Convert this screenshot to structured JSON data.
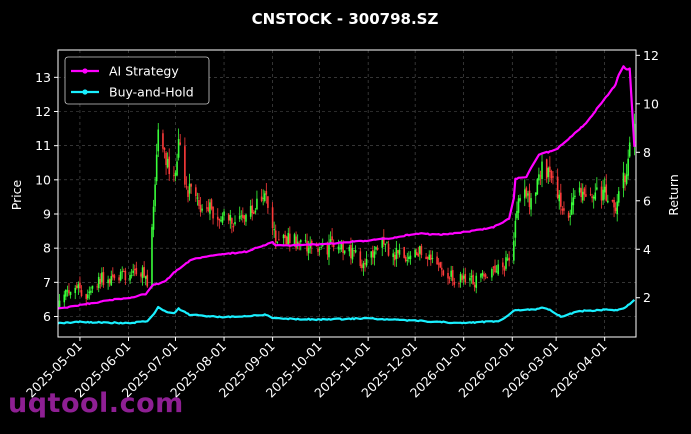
{
  "watermark": "uqtool.com",
  "chart_data": {
    "type": "candlestick+line",
    "title": "CNSTOCK - 300798.SZ",
    "ylabel_left": "Price",
    "ylabel_right": "Return",
    "ylim_left": [
      5.4,
      13.8
    ],
    "ylim_right": [
      0.38,
      12.22
    ],
    "x_range": [
      "2025-04-17",
      "2026-04-21"
    ],
    "x_ticks": [
      "2025-05-01",
      "2025-06-01",
      "2025-07-01",
      "2025-08-01",
      "2025-09-01",
      "2025-10-01",
      "2025-11-01",
      "2025-12-01",
      "2026-01-01",
      "2026-02-01",
      "2026-03-01",
      "2026-04-01"
    ],
    "y_ticks_left": [
      6,
      7,
      8,
      9,
      10,
      11,
      12,
      13
    ],
    "y_ticks_right": [
      2,
      4,
      6,
      8,
      10,
      12
    ],
    "grid": true,
    "legend_position": "top-left",
    "colors": {
      "up": "#39ff3a",
      "down": "#ff3b3b",
      "ai": "#ff00ff",
      "bh": "#19f0ff",
      "background": "#000000"
    },
    "price_keypoints": [
      [
        "2025-04-18",
        6.3
      ],
      [
        "2025-04-25",
        6.9
      ],
      [
        "2025-05-05",
        6.7
      ],
      [
        "2025-05-15",
        7.1
      ],
      [
        "2025-05-28",
        7.2
      ],
      [
        "2025-06-10",
        7.3
      ],
      [
        "2025-06-13",
        7.0
      ],
      [
        "2025-06-16",
        8.6
      ],
      [
        "2025-06-20",
        11.2
      ],
      [
        "2025-06-24",
        10.6
      ],
      [
        "2025-06-30",
        9.9
      ],
      [
        "2025-07-03",
        11.0
      ],
      [
        "2025-07-08",
        9.8
      ],
      [
        "2025-07-15",
        9.3
      ],
      [
        "2025-07-22",
        9.2
      ],
      [
        "2025-08-01",
        8.9
      ],
      [
        "2025-08-12",
        8.8
      ],
      [
        "2025-08-20",
        9.1
      ],
      [
        "2025-08-28",
        9.6
      ],
      [
        "2025-09-02",
        8.4
      ],
      [
        "2025-09-15",
        8.2
      ],
      [
        "2025-10-01",
        8.0
      ],
      [
        "2025-10-15",
        8.1
      ],
      [
        "2025-10-28",
        7.6
      ],
      [
        "2025-11-10",
        8.1
      ],
      [
        "2025-11-20",
        7.8
      ],
      [
        "2025-12-05",
        7.9
      ],
      [
        "2025-12-15",
        7.6
      ],
      [
        "2025-12-25",
        7.1
      ],
      [
        "2026-01-10",
        7.0
      ],
      [
        "2026-01-22",
        7.4
      ],
      [
        "2026-02-01",
        7.7
      ],
      [
        "2026-02-05",
        9.6
      ],
      [
        "2026-02-12",
        9.4
      ],
      [
        "2026-02-20",
        10.3
      ],
      [
        "2026-03-01",
        9.8
      ],
      [
        "2026-03-08",
        8.8
      ],
      [
        "2026-03-15",
        9.6
      ],
      [
        "2026-03-22",
        9.5
      ],
      [
        "2026-04-01",
        9.7
      ],
      [
        "2026-04-08",
        9.2
      ],
      [
        "2026-04-14",
        10.2
      ],
      [
        "2026-04-20",
        11.7
      ]
    ],
    "series": [
      {
        "name": "AI Strategy",
        "points": [
          [
            "2025-04-17",
            1.55
          ],
          [
            "2025-05-01",
            1.7
          ],
          [
            "2025-05-20",
            1.9
          ],
          [
            "2025-06-01",
            2.0
          ],
          [
            "2025-06-12",
            2.15
          ],
          [
            "2025-06-16",
            2.5
          ],
          [
            "2025-06-25",
            2.7
          ],
          [
            "2025-07-01",
            3.1
          ],
          [
            "2025-07-12",
            3.6
          ],
          [
            "2025-07-20",
            3.7
          ],
          [
            "2025-08-01",
            3.8
          ],
          [
            "2025-08-15",
            3.9
          ],
          [
            "2025-09-01",
            4.3
          ],
          [
            "2025-09-03",
            4.15
          ],
          [
            "2025-10-01",
            4.2
          ],
          [
            "2025-10-20",
            4.3
          ],
          [
            "2025-11-01",
            4.35
          ],
          [
            "2025-11-20",
            4.5
          ],
          [
            "2025-12-01",
            4.65
          ],
          [
            "2025-12-20",
            4.6
          ],
          [
            "2026-01-01",
            4.7
          ],
          [
            "2026-01-20",
            4.9
          ],
          [
            "2026-01-28",
            5.2
          ],
          [
            "2026-02-01",
            5.3
          ],
          [
            "2026-02-03",
            6.9
          ],
          [
            "2026-02-10",
            7.0
          ],
          [
            "2026-02-18",
            7.9
          ],
          [
            "2026-03-01",
            8.1
          ],
          [
            "2026-03-10",
            8.6
          ],
          [
            "2026-03-20",
            9.2
          ],
          [
            "2026-04-01",
            10.2
          ],
          [
            "2026-04-08",
            10.8
          ],
          [
            "2026-04-12",
            11.6
          ],
          [
            "2026-04-15",
            11.4
          ],
          [
            "2026-04-19",
            11.5
          ],
          [
            "2026-04-20",
            8.2
          ]
        ]
      },
      {
        "name": "Buy-and-Hold",
        "points": [
          [
            "2025-04-17",
            0.95
          ],
          [
            "2025-05-01",
            1.0
          ],
          [
            "2025-06-01",
            0.95
          ],
          [
            "2025-06-14",
            1.05
          ],
          [
            "2025-06-20",
            1.6
          ],
          [
            "2025-06-24",
            1.45
          ],
          [
            "2025-06-30",
            1.35
          ],
          [
            "2025-07-03",
            1.55
          ],
          [
            "2025-07-10",
            1.3
          ],
          [
            "2025-08-01",
            1.2
          ],
          [
            "2025-08-28",
            1.3
          ],
          [
            "2025-09-02",
            1.15
          ],
          [
            "2025-10-01",
            1.1
          ],
          [
            "2025-11-01",
            1.15
          ],
          [
            "2025-12-01",
            1.05
          ],
          [
            "2026-01-01",
            0.95
          ],
          [
            "2026-01-25",
            1.05
          ],
          [
            "2026-02-03",
            1.5
          ],
          [
            "2026-02-15",
            1.5
          ],
          [
            "2026-02-22",
            1.6
          ],
          [
            "2026-03-05",
            1.2
          ],
          [
            "2026-03-15",
            1.45
          ],
          [
            "2026-04-01",
            1.5
          ],
          [
            "2026-04-12",
            1.5
          ],
          [
            "2026-04-20",
            1.9
          ]
        ]
      }
    ]
  }
}
